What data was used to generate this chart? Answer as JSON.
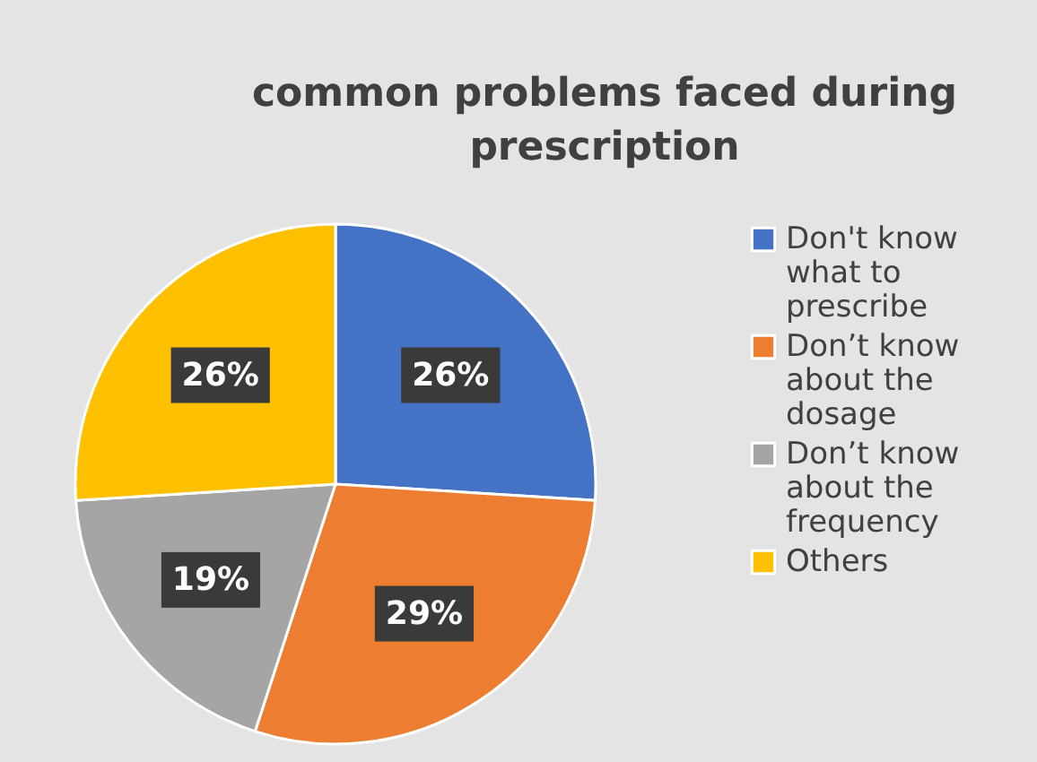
{
  "chart_data": {
    "type": "pie",
    "title": "common problems faced during prescription",
    "categories": [
      "Don't know what to prescribe",
      "Don’t know about the dosage",
      "Don’t know about the frequency",
      "Others"
    ],
    "values": [
      26,
      29,
      19,
      26
    ],
    "colors": [
      "#4472c4",
      "#ed7d31",
      "#a5a5a5",
      "#ffc000"
    ],
    "value_labels": [
      "26%",
      "29%",
      "19%",
      "26%"
    ],
    "legend": "right"
  }
}
